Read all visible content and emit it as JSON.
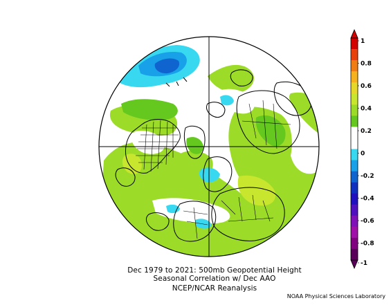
{
  "map": {
    "title_line1": "Dec 1979 to 2021: 500mb Geopotential Height",
    "title_line2": "Seasonal Correlation w/ Dec AAO",
    "subtitle": "NCEP/NCAR Reanalysis",
    "credit": "NOAA Physical Sciences Laboratory",
    "projection": "north polar stereographic",
    "colorbar": {
      "labels": [
        "1",
        "0.8",
        "0.6",
        "0.4",
        "0.2",
        "0",
        "-0.2",
        "-0.4",
        "-0.6",
        "-0.8",
        "-1"
      ],
      "colors": [
        "#d40000",
        "#e8420a",
        "#f07c14",
        "#f5b21e",
        "#e6d82a",
        "#c8e62e",
        "#9cdc28",
        "#64c81e",
        "#ffffff",
        "#ffffff",
        "#38d8f0",
        "#18a0e8",
        "#1064d0",
        "#1030c0",
        "#2010c0",
        "#5010c0",
        "#8010b8",
        "#a010a8",
        "#800080",
        "#5a005a"
      ]
    }
  }
}
